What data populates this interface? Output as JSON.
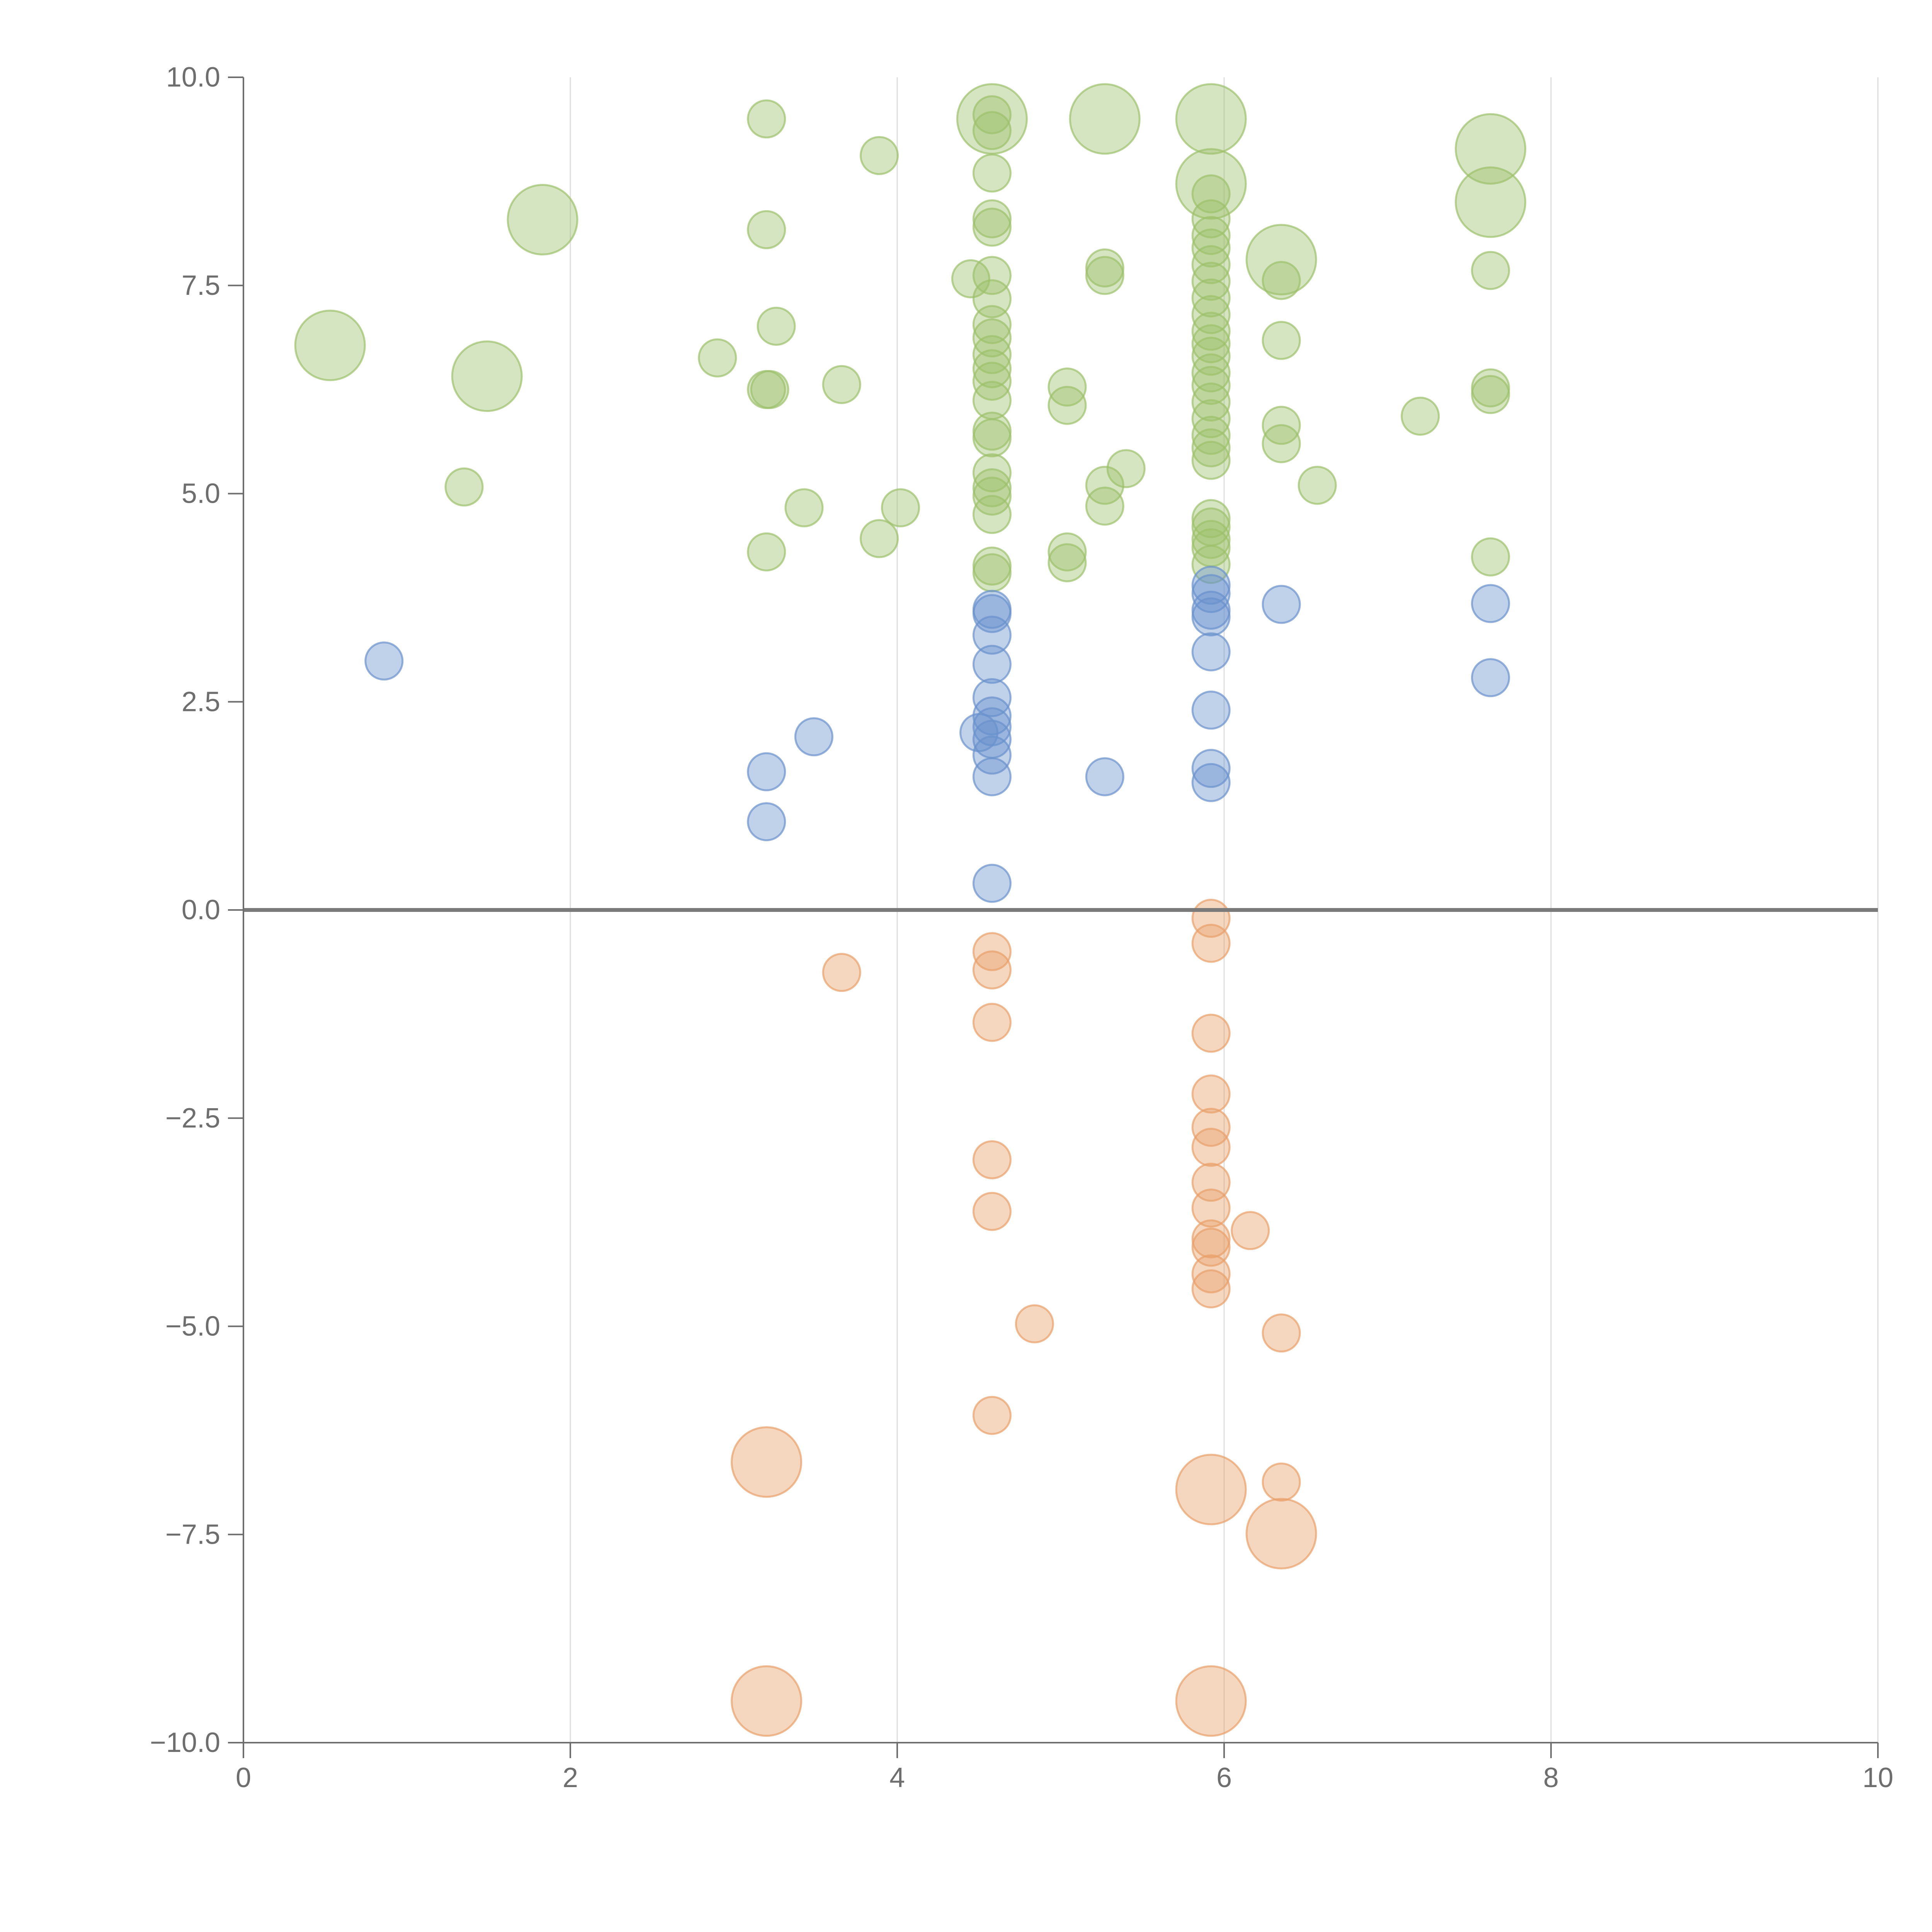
{
  "chart_data": {
    "type": "scatter",
    "title": "",
    "xlabel": "",
    "ylabel": "",
    "xlim": [
      0,
      10
    ],
    "ylim": [
      -10,
      10
    ],
    "grid": {
      "vertical": true,
      "horizontal": false
    },
    "zero_line": true,
    "x_ticks": [
      "0",
      "2",
      "4",
      "6",
      "8",
      "10"
    ],
    "x_tick_values": [
      0,
      2,
      4,
      6,
      8,
      10
    ],
    "y_ticks": [
      "10.0",
      "7.5",
      "5.0",
      "2.5",
      "0.0",
      "−2.5",
      "−5.0",
      "−7.5",
      "−10.0"
    ],
    "y_tick_values": [
      10,
      7.5,
      5,
      2.5,
      0,
      -2.5,
      -5,
      -7.5,
      -10
    ],
    "series": [
      {
        "name": "green",
        "color": "#9dc16b",
        "points": [
          {
            "x": 0.53,
            "y": 6.78,
            "s": 2
          },
          {
            "x": 1.49,
            "y": 6.41,
            "s": 2
          },
          {
            "x": 1.83,
            "y": 8.29,
            "s": 2
          },
          {
            "x": 1.35,
            "y": 5.08,
            "s": 1
          },
          {
            "x": 2.9,
            "y": 6.63,
            "s": 1
          },
          {
            "x": 3.2,
            "y": 9.5,
            "s": 1
          },
          {
            "x": 3.2,
            "y": 8.17,
            "s": 1
          },
          {
            "x": 3.2,
            "y": 6.25,
            "s": 1
          },
          {
            "x": 3.22,
            "y": 6.25,
            "s": 1
          },
          {
            "x": 3.2,
            "y": 4.3,
            "s": 1
          },
          {
            "x": 3.26,
            "y": 7.01,
            "s": 1
          },
          {
            "x": 3.43,
            "y": 4.83,
            "s": 1
          },
          {
            "x": 3.66,
            "y": 6.31,
            "s": 1
          },
          {
            "x": 3.89,
            "y": 9.06,
            "s": 1
          },
          {
            "x": 3.89,
            "y": 4.46,
            "s": 1
          },
          {
            "x": 4.02,
            "y": 4.83,
            "s": 1
          },
          {
            "x": 4.45,
            "y": 7.58,
            "s": 1
          },
          {
            "x": 4.58,
            "y": 9.5,
            "s": 2
          },
          {
            "x": 4.58,
            "y": 9.55,
            "s": 1
          },
          {
            "x": 4.58,
            "y": 9.36,
            "s": 1
          },
          {
            "x": 4.58,
            "y": 8.85,
            "s": 1
          },
          {
            "x": 4.58,
            "y": 8.3,
            "s": 1
          },
          {
            "x": 4.58,
            "y": 8.2,
            "s": 1
          },
          {
            "x": 4.58,
            "y": 7.62,
            "s": 1
          },
          {
            "x": 4.58,
            "y": 7.34,
            "s": 1
          },
          {
            "x": 4.58,
            "y": 7.03,
            "s": 1
          },
          {
            "x": 4.58,
            "y": 6.87,
            "s": 1
          },
          {
            "x": 4.58,
            "y": 6.67,
            "s": 1
          },
          {
            "x": 4.58,
            "y": 6.5,
            "s": 1
          },
          {
            "x": 4.58,
            "y": 6.35,
            "s": 1
          },
          {
            "x": 4.58,
            "y": 6.12,
            "s": 1
          },
          {
            "x": 4.58,
            "y": 5.75,
            "s": 1
          },
          {
            "x": 4.58,
            "y": 5.67,
            "s": 1
          },
          {
            "x": 4.58,
            "y": 5.25,
            "s": 1
          },
          {
            "x": 4.58,
            "y": 5.07,
            "s": 1
          },
          {
            "x": 4.58,
            "y": 4.97,
            "s": 1
          },
          {
            "x": 4.58,
            "y": 4.75,
            "s": 1
          },
          {
            "x": 4.58,
            "y": 4.13,
            "s": 1
          },
          {
            "x": 4.58,
            "y": 4.05,
            "s": 1
          },
          {
            "x": 5.04,
            "y": 6.28,
            "s": 1
          },
          {
            "x": 5.04,
            "y": 6.06,
            "s": 1
          },
          {
            "x": 5.04,
            "y": 4.3,
            "s": 1
          },
          {
            "x": 5.04,
            "y": 4.17,
            "s": 1
          },
          {
            "x": 5.27,
            "y": 9.5,
            "s": 2
          },
          {
            "x": 5.27,
            "y": 7.71,
            "s": 1
          },
          {
            "x": 5.27,
            "y": 7.62,
            "s": 1
          },
          {
            "x": 5.27,
            "y": 5.1,
            "s": 1
          },
          {
            "x": 5.27,
            "y": 4.85,
            "s": 1
          },
          {
            "x": 5.4,
            "y": 5.3,
            "s": 1
          },
          {
            "x": 5.92,
            "y": 9.5,
            "s": 2
          },
          {
            "x": 5.92,
            "y": 8.72,
            "s": 2
          },
          {
            "x": 5.92,
            "y": 8.6,
            "s": 1
          },
          {
            "x": 5.92,
            "y": 8.3,
            "s": 1
          },
          {
            "x": 5.92,
            "y": 8.1,
            "s": 1
          },
          {
            "x": 5.92,
            "y": 7.95,
            "s": 1
          },
          {
            "x": 5.92,
            "y": 7.75,
            "s": 1
          },
          {
            "x": 5.92,
            "y": 7.55,
            "s": 1
          },
          {
            "x": 5.92,
            "y": 7.35,
            "s": 1
          },
          {
            "x": 5.92,
            "y": 7.15,
            "s": 1
          },
          {
            "x": 5.92,
            "y": 6.95,
            "s": 1
          },
          {
            "x": 5.92,
            "y": 6.8,
            "s": 1
          },
          {
            "x": 5.92,
            "y": 6.65,
            "s": 1
          },
          {
            "x": 5.92,
            "y": 6.45,
            "s": 1
          },
          {
            "x": 5.92,
            "y": 6.3,
            "s": 1
          },
          {
            "x": 5.92,
            "y": 6.1,
            "s": 1
          },
          {
            "x": 5.92,
            "y": 5.9,
            "s": 1
          },
          {
            "x": 5.92,
            "y": 5.7,
            "s": 1
          },
          {
            "x": 5.92,
            "y": 5.55,
            "s": 1
          },
          {
            "x": 5.92,
            "y": 5.4,
            "s": 1
          },
          {
            "x": 5.92,
            "y": 4.7,
            "s": 1
          },
          {
            "x": 5.92,
            "y": 4.6,
            "s": 1
          },
          {
            "x": 5.92,
            "y": 4.45,
            "s": 1
          },
          {
            "x": 5.92,
            "y": 4.35,
            "s": 1
          },
          {
            "x": 5.92,
            "y": 4.15,
            "s": 1
          },
          {
            "x": 6.35,
            "y": 7.81,
            "s": 2
          },
          {
            "x": 6.35,
            "y": 7.56,
            "s": 1
          },
          {
            "x": 6.35,
            "y": 6.84,
            "s": 1
          },
          {
            "x": 6.35,
            "y": 5.82,
            "s": 1
          },
          {
            "x": 6.35,
            "y": 5.6,
            "s": 1
          },
          {
            "x": 6.57,
            "y": 5.1,
            "s": 1
          },
          {
            "x": 7.2,
            "y": 5.93,
            "s": 1
          },
          {
            "x": 7.63,
            "y": 9.14,
            "s": 2
          },
          {
            "x": 7.63,
            "y": 8.5,
            "s": 2
          },
          {
            "x": 7.63,
            "y": 7.68,
            "s": 1
          },
          {
            "x": 7.63,
            "y": 6.27,
            "s": 1
          },
          {
            "x": 7.63,
            "y": 6.19,
            "s": 1
          },
          {
            "x": 7.63,
            "y": 4.24,
            "s": 1
          }
        ]
      },
      {
        "name": "blue",
        "color": "#6a92cc",
        "points": [
          {
            "x": 0.86,
            "y": 2.99,
            "s": 1
          },
          {
            "x": 3.2,
            "y": 1.66,
            "s": 1
          },
          {
            "x": 3.2,
            "y": 1.06,
            "s": 1
          },
          {
            "x": 3.49,
            "y": 2.08,
            "s": 1
          },
          {
            "x": 4.58,
            "y": 3.61,
            "s": 1
          },
          {
            "x": 4.58,
            "y": 3.56,
            "s": 1
          },
          {
            "x": 4.58,
            "y": 3.3,
            "s": 1
          },
          {
            "x": 4.58,
            "y": 2.95,
            "s": 1
          },
          {
            "x": 4.58,
            "y": 2.55,
            "s": 1
          },
          {
            "x": 4.58,
            "y": 2.33,
            "s": 1
          },
          {
            "x": 4.58,
            "y": 2.2,
            "s": 1
          },
          {
            "x": 4.5,
            "y": 2.13,
            "s": 1
          },
          {
            "x": 4.58,
            "y": 2.05,
            "s": 1
          },
          {
            "x": 4.58,
            "y": 1.86,
            "s": 1
          },
          {
            "x": 4.58,
            "y": 1.6,
            "s": 1
          },
          {
            "x": 4.58,
            "y": 0.32,
            "s": 1
          },
          {
            "x": 5.27,
            "y": 1.6,
            "s": 1
          },
          {
            "x": 5.92,
            "y": 3.9,
            "s": 1
          },
          {
            "x": 5.92,
            "y": 3.8,
            "s": 1
          },
          {
            "x": 5.92,
            "y": 3.6,
            "s": 1
          },
          {
            "x": 5.92,
            "y": 3.52,
            "s": 1
          },
          {
            "x": 5.92,
            "y": 3.1,
            "s": 1
          },
          {
            "x": 5.92,
            "y": 2.4,
            "s": 1
          },
          {
            "x": 5.92,
            "y": 1.7,
            "s": 1
          },
          {
            "x": 5.92,
            "y": 1.53,
            "s": 1
          },
          {
            "x": 6.35,
            "y": 3.67,
            "s": 1
          },
          {
            "x": 7.63,
            "y": 3.68,
            "s": 1
          },
          {
            "x": 7.63,
            "y": 2.79,
            "s": 1
          }
        ]
      },
      {
        "name": "orange",
        "color": "#e8a06a",
        "points": [
          {
            "x": 3.66,
            "y": -0.75,
            "s": 1
          },
          {
            "x": 3.2,
            "y": -6.63,
            "s": 2
          },
          {
            "x": 3.2,
            "y": -9.5,
            "s": 2
          },
          {
            "x": 4.58,
            "y": -0.5,
            "s": 1
          },
          {
            "x": 4.58,
            "y": -0.72,
            "s": 1
          },
          {
            "x": 4.58,
            "y": -1.35,
            "s": 1
          },
          {
            "x": 4.58,
            "y": -3.0,
            "s": 1
          },
          {
            "x": 4.58,
            "y": -3.62,
            "s": 1
          },
          {
            "x": 4.58,
            "y": -6.07,
            "s": 1
          },
          {
            "x": 4.84,
            "y": -4.97,
            "s": 1
          },
          {
            "x": 5.92,
            "y": -0.1,
            "s": 1
          },
          {
            "x": 5.92,
            "y": -0.4,
            "s": 1
          },
          {
            "x": 5.92,
            "y": -1.48,
            "s": 1
          },
          {
            "x": 5.92,
            "y": -2.21,
            "s": 1
          },
          {
            "x": 5.92,
            "y": -2.61,
            "s": 1
          },
          {
            "x": 5.92,
            "y": -2.85,
            "s": 1
          },
          {
            "x": 5.92,
            "y": -3.27,
            "s": 1
          },
          {
            "x": 5.92,
            "y": -3.58,
            "s": 1
          },
          {
            "x": 5.92,
            "y": -3.95,
            "s": 1
          },
          {
            "x": 5.92,
            "y": -4.05,
            "s": 1
          },
          {
            "x": 5.92,
            "y": -4.37,
            "s": 1
          },
          {
            "x": 5.92,
            "y": -4.55,
            "s": 1
          },
          {
            "x": 5.92,
            "y": -6.96,
            "s": 2
          },
          {
            "x": 5.92,
            "y": -9.5,
            "s": 2
          },
          {
            "x": 6.16,
            "y": -3.85,
            "s": 1
          },
          {
            "x": 6.35,
            "y": -5.08,
            "s": 1
          },
          {
            "x": 6.35,
            "y": -6.87,
            "s": 1
          },
          {
            "x": 6.35,
            "y": -7.49,
            "s": 2
          }
        ]
      }
    ]
  }
}
